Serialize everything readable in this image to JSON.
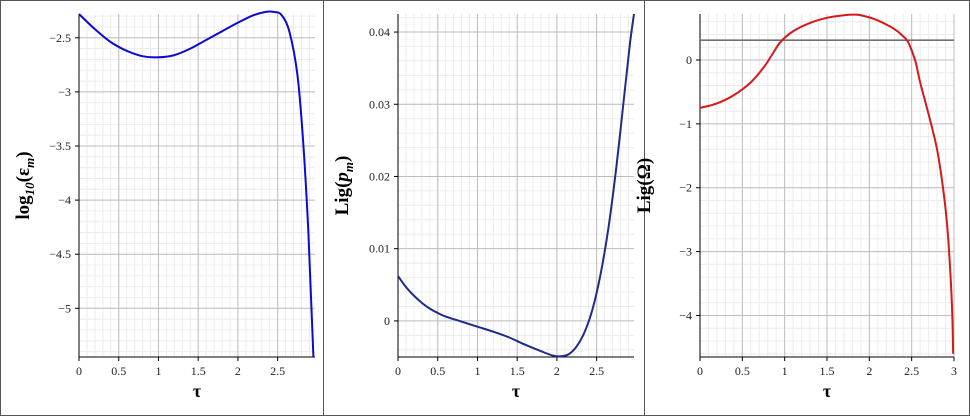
{
  "chart_data": [
    {
      "type": "line",
      "xlabel": "τ",
      "ylabel": {
        "main": "log",
        "sub1": "10",
        "paren_open": "(",
        "sym": "ε",
        "sub2": "m",
        "paren_close": ")"
      },
      "xlim": [
        0,
        2.97
      ],
      "ylim": [
        -5.45,
        -2.28
      ],
      "xticks": [
        0,
        0.5,
        1,
        1.5,
        2,
        2.5
      ],
      "xtick_labels": [
        "0",
        "0.5",
        "1",
        "1.5",
        "2",
        "2.5"
      ],
      "yticks": [
        -2.5,
        -3,
        -3.5,
        -4,
        -4.5,
        -5
      ],
      "ytick_labels": [
        "−2.5",
        "−3",
        "−3.5",
        "−4",
        "−4.5",
        "−5"
      ],
      "grid": true,
      "series": [
        {
          "color": "#0a0ad4",
          "x": [
            0,
            0.2,
            0.4,
            0.6,
            0.8,
            1.0,
            1.2,
            1.4,
            1.6,
            1.8,
            2.0,
            2.2,
            2.35,
            2.45,
            2.55,
            2.65,
            2.75,
            2.82,
            2.88,
            2.92,
            2.95
          ],
          "y": [
            -2.28,
            -2.42,
            -2.54,
            -2.62,
            -2.67,
            -2.68,
            -2.66,
            -2.6,
            -2.52,
            -2.44,
            -2.36,
            -2.29,
            -2.26,
            -2.26,
            -2.29,
            -2.45,
            -2.85,
            -3.45,
            -4.2,
            -4.9,
            -5.45
          ]
        }
      ]
    },
    {
      "type": "line",
      "xlabel": "τ",
      "ylabel": {
        "main": "Lig",
        "paren_open": "(",
        "sym": "p",
        "sub2": "m",
        "paren_close": ")"
      },
      "xlim": [
        0,
        2.97
      ],
      "ylim": [
        -0.005,
        0.0425
      ],
      "xticks": [
        0,
        0.5,
        1,
        1.5,
        2,
        2.5
      ],
      "xtick_labels": [
        "0",
        "0.5",
        "1",
        "1.5",
        "2",
        "2.5"
      ],
      "yticks": [
        0,
        0.01,
        0.02,
        0.03,
        0.04
      ],
      "ytick_labels": [
        "0",
        "0.01",
        "0.02",
        "0.03",
        "0.04"
      ],
      "grid": true,
      "series": [
        {
          "color": "#1f2a8a",
          "x": [
            0,
            0.1,
            0.2,
            0.3,
            0.4,
            0.5,
            0.6,
            0.8,
            1.0,
            1.2,
            1.4,
            1.6,
            1.8,
            1.95,
            2.05,
            2.15,
            2.25,
            2.35,
            2.45,
            2.55,
            2.65,
            2.75,
            2.85,
            2.92,
            2.97
          ],
          "y": [
            0.0062,
            0.0047,
            0.0035,
            0.0025,
            0.0017,
            0.0011,
            0.0006,
            -0.0001,
            -0.0008,
            -0.0015,
            -0.0023,
            -0.0033,
            -0.0042,
            -0.0048,
            -0.0049,
            -0.0046,
            -0.0035,
            -0.0015,
            0.0017,
            0.0065,
            0.013,
            0.0215,
            0.0315,
            0.0385,
            0.0425
          ]
        }
      ]
    },
    {
      "type": "line",
      "xlabel": "τ",
      "ylabel": {
        "main": "Lig",
        "paren_open": "(",
        "sym": "Ω",
        "paren_close": ")"
      },
      "xlim": [
        0,
        3.0
      ],
      "ylim": [
        -4.65,
        0.72
      ],
      "xticks": [
        0,
        0.5,
        1,
        1.5,
        2,
        2.5,
        3
      ],
      "xtick_labels": [
        "0",
        "0.5",
        "1",
        "1.5",
        "2",
        "2.5",
        "3"
      ],
      "yticks": [
        0,
        -1,
        -2,
        -3,
        -4
      ],
      "ytick_labels": [
        "0",
        "−1",
        "−2",
        "−3",
        "−4"
      ],
      "grid": true,
      "reference_line": {
        "y": 0.31,
        "color": "#707070"
      },
      "series": [
        {
          "color": "#d81818",
          "x": [
            0,
            0.2,
            0.4,
            0.6,
            0.75,
            0.85,
            0.95,
            1.1,
            1.3,
            1.5,
            1.7,
            1.8,
            1.9,
            2.1,
            2.3,
            2.4,
            2.45,
            2.5,
            2.55,
            2.6,
            2.7,
            2.8,
            2.87,
            2.92,
            2.96,
            2.98,
            2.99
          ],
          "y": [
            -0.75,
            -0.68,
            -0.55,
            -0.35,
            -0.12,
            0.08,
            0.28,
            0.45,
            0.58,
            0.66,
            0.7,
            0.71,
            0.7,
            0.62,
            0.48,
            0.37,
            0.3,
            0.15,
            -0.05,
            -0.35,
            -0.85,
            -1.4,
            -2.0,
            -2.6,
            -3.4,
            -4.0,
            -4.6
          ]
        }
      ]
    }
  ]
}
